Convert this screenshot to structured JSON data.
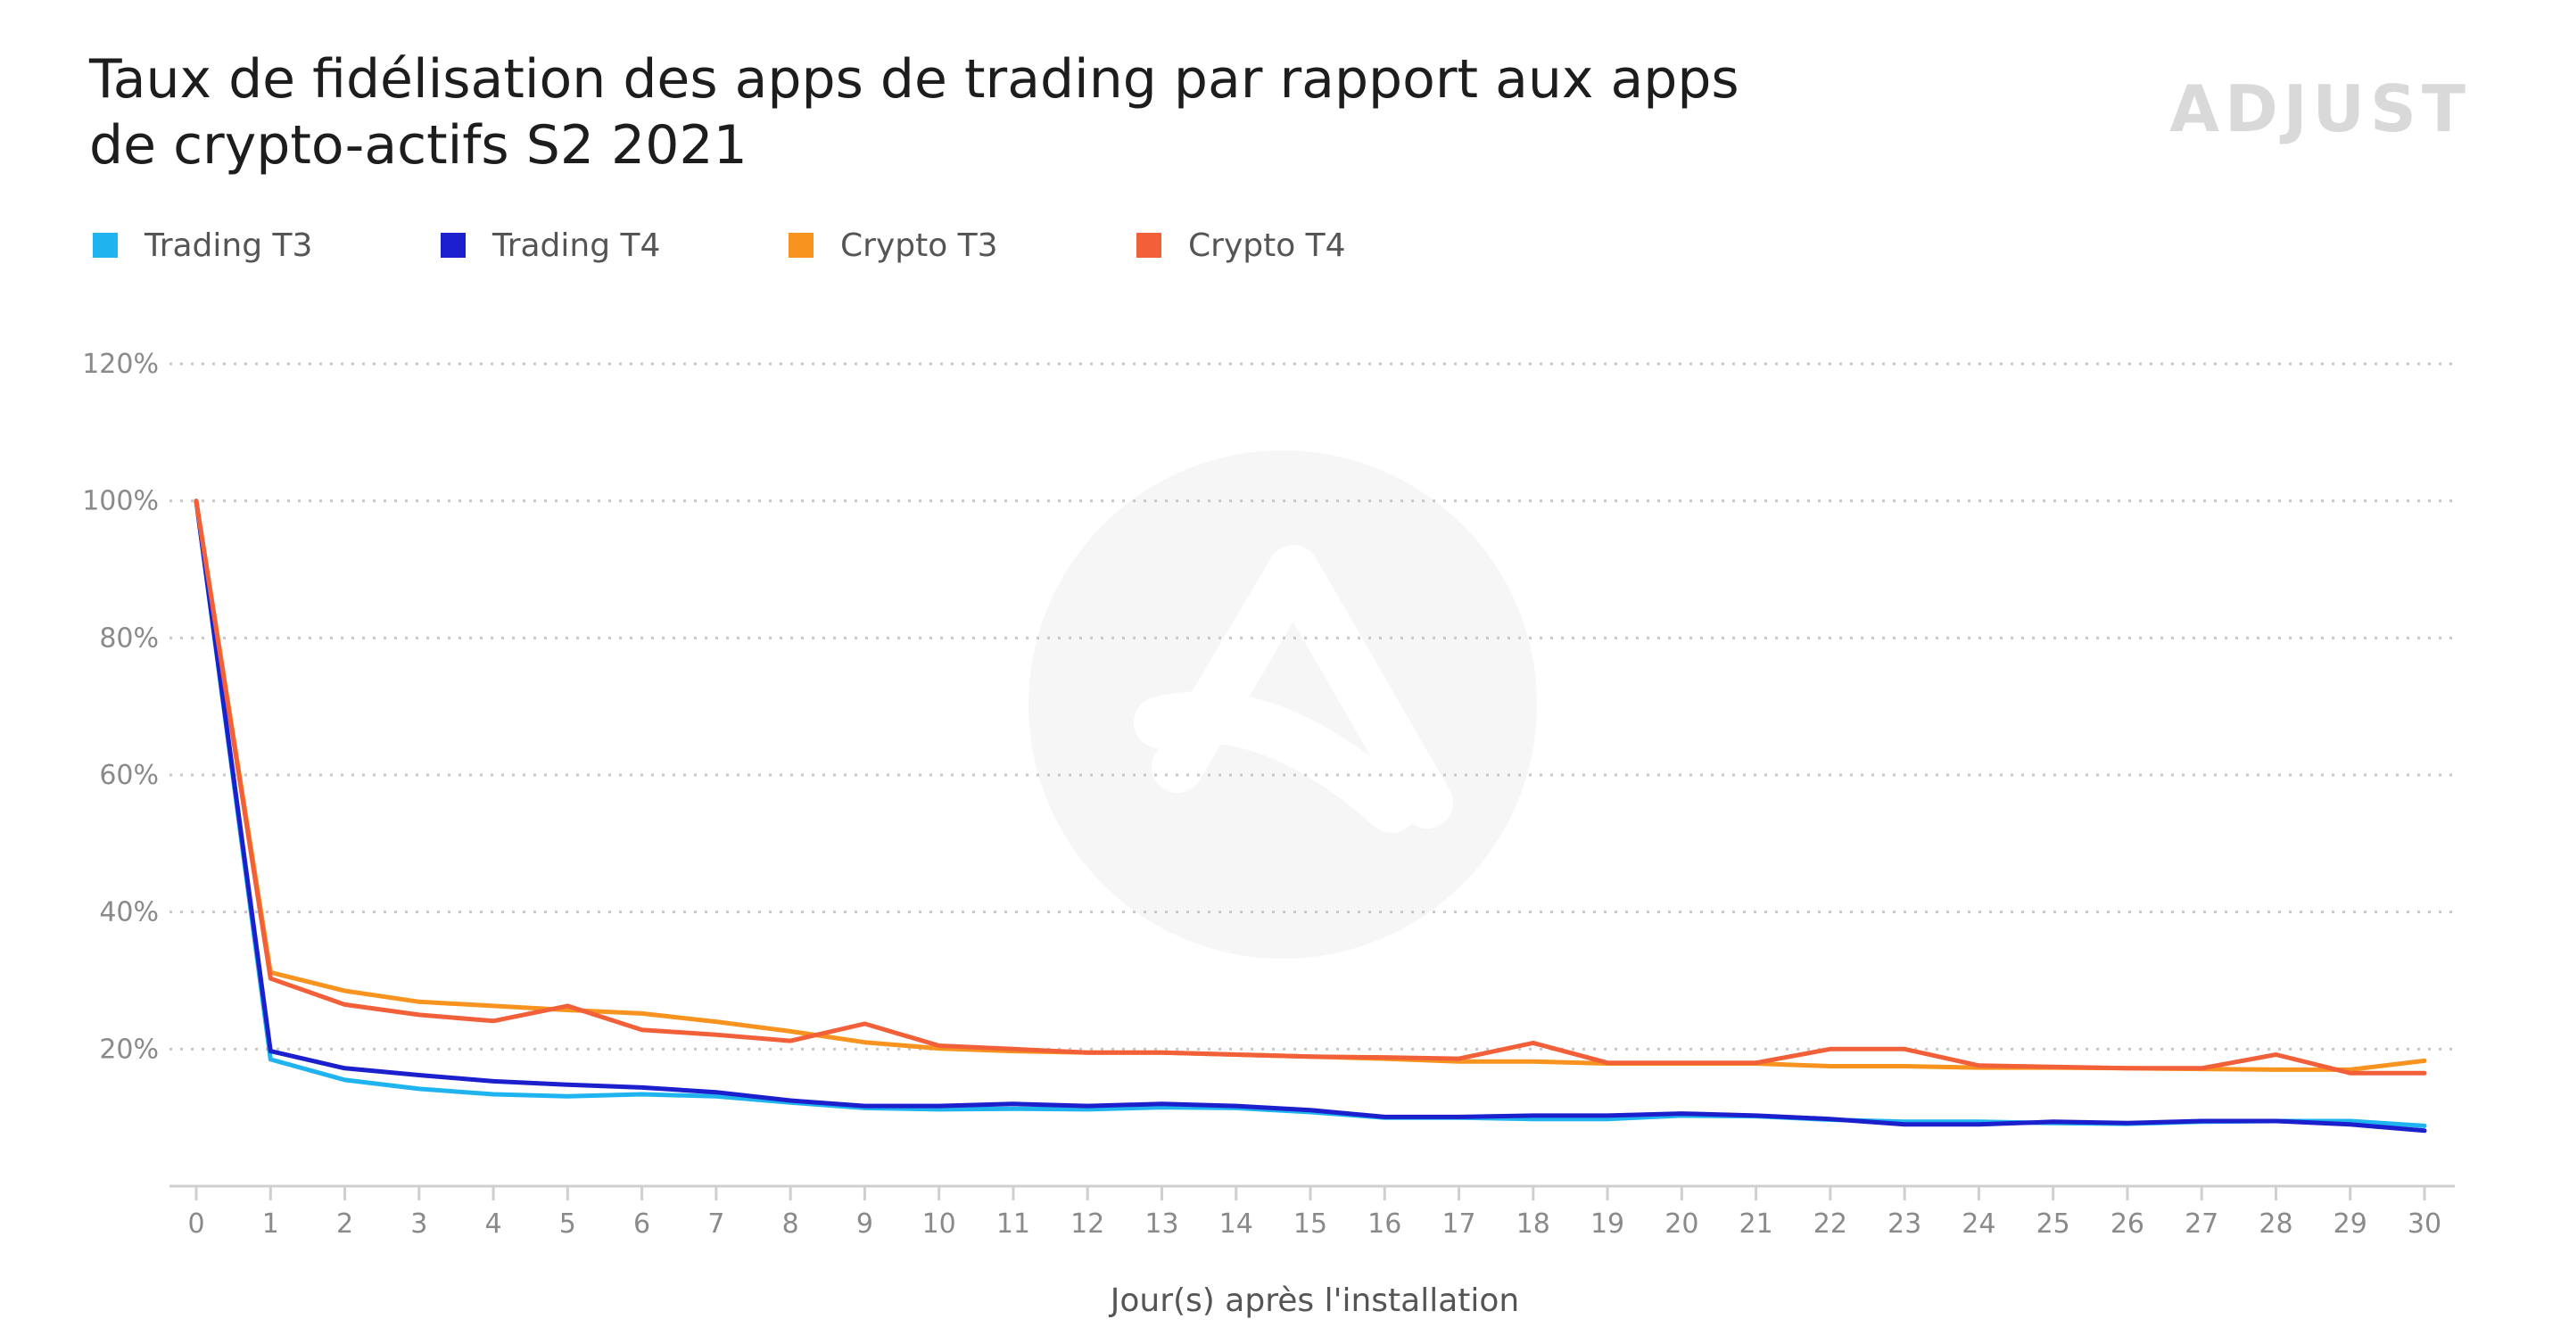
{
  "chart_data": {
    "type": "line",
    "title_lines": [
      "Taux de fidélisation des apps de trading par rapport aux apps",
      "de crypto-actifs S2 2021"
    ],
    "brand": "ADJUST",
    "xlabel": "Jour(s) après l'installation",
    "ylabel": "",
    "x": [
      0,
      1,
      2,
      3,
      4,
      5,
      6,
      7,
      8,
      9,
      10,
      11,
      12,
      13,
      14,
      15,
      16,
      17,
      18,
      19,
      20,
      21,
      22,
      23,
      24,
      25,
      26,
      27,
      28,
      29,
      30
    ],
    "y_ticks": [
      20,
      40,
      60,
      80,
      100,
      120
    ],
    "y_tick_labels": [
      "20%",
      "40%",
      "60%",
      "80%",
      "100%",
      "120%"
    ],
    "ylim": [
      0,
      120
    ],
    "grid": "horizontal dotted",
    "legend_position": "top-left",
    "series": [
      {
        "name": "Trading T3",
        "color": "#1fb4f0",
        "values": [
          100,
          18.5,
          15.5,
          14.2,
          13.4,
          13.1,
          13.4,
          13.1,
          12.2,
          11.4,
          11.2,
          11.3,
          11.2,
          11.5,
          11.4,
          10.8,
          10,
          10,
          9.8,
          9.8,
          10.3,
          10.2,
          9.7,
          9.4,
          9.4,
          9.2,
          9.1,
          9.4,
          9.5,
          9.5,
          8.8
        ]
      },
      {
        "name": "Trading T4",
        "color": "#1c1fcc",
        "values": [
          100,
          19.7,
          17.2,
          16.2,
          15.3,
          14.8,
          14.4,
          13.7,
          12.5,
          11.7,
          11.7,
          12,
          11.7,
          12,
          11.7,
          11.1,
          10.1,
          10.1,
          10.3,
          10.3,
          10.6,
          10.3,
          9.8,
          9,
          9,
          9.4,
          9.2,
          9.5,
          9.5,
          9,
          8.1
        ]
      },
      {
        "name": "Crypto T3",
        "color": "#f7931e",
        "values": [
          100,
          31.2,
          28.5,
          26.9,
          26.3,
          25.7,
          25.2,
          24,
          22.6,
          21,
          20.1,
          19.7,
          19.5,
          19.5,
          19.2,
          18.9,
          18.6,
          18.2,
          18.2,
          17.9,
          17.9,
          17.9,
          17.5,
          17.5,
          17.3,
          17.3,
          17.2,
          17.1,
          17,
          17,
          18.3
        ]
      },
      {
        "name": "Crypto T4",
        "color": "#f26039",
        "values": [
          100,
          30.3,
          26.5,
          25,
          24.1,
          26.3,
          22.8,
          22.1,
          21.2,
          23.7,
          20.5,
          20,
          19.5,
          19.5,
          19.2,
          18.9,
          18.8,
          18.6,
          20.9,
          18,
          18,
          18,
          20,
          20,
          17.6,
          17.4,
          17.2,
          17.2,
          19.2,
          16.5,
          16.5
        ]
      }
    ]
  }
}
